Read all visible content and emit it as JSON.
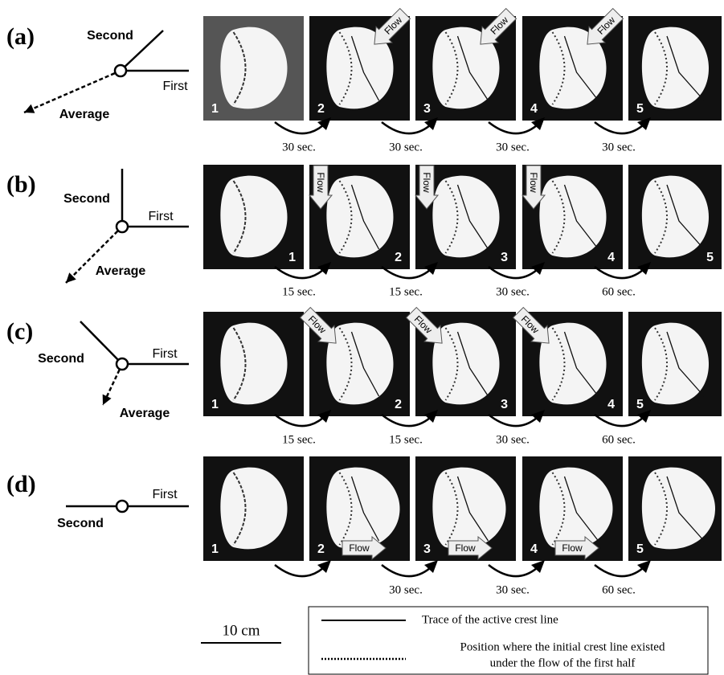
{
  "rows": [
    {
      "label": "(a)",
      "diagram": {
        "second": "Second",
        "first": "First",
        "average": "Average"
      },
      "panels": [
        "1",
        "2",
        "3",
        "4",
        "5"
      ],
      "flow": [
        "Flow",
        "Flow",
        "Flow"
      ],
      "intervals": [
        "30 sec.",
        "30 sec.",
        "30 sec.",
        "30 sec."
      ]
    },
    {
      "label": "(b)",
      "diagram": {
        "second": "Second",
        "first": "First",
        "average": "Average"
      },
      "panels": [
        "1",
        "2",
        "3",
        "4",
        "5"
      ],
      "flow": [
        "Flow",
        "Flow",
        "Flow"
      ],
      "intervals": [
        "15 sec.",
        "15 sec.",
        "30 sec.",
        "60 sec."
      ]
    },
    {
      "label": "(c)",
      "diagram": {
        "second": "Second",
        "first": "First",
        "average": "Average"
      },
      "panels": [
        "1",
        "2",
        "3",
        "4",
        "5"
      ],
      "flow": [
        "Flow",
        "Flow",
        "Flow"
      ],
      "intervals": [
        "15 sec.",
        "15 sec.",
        "30 sec.",
        "60 sec."
      ]
    },
    {
      "label": "(d)",
      "diagram": {
        "second": "Second",
        "first": "First"
      },
      "panels": [
        "1",
        "2",
        "3",
        "4",
        "5"
      ],
      "flow": [
        "Flow",
        "Flow",
        "Flow"
      ],
      "intervals": [
        "30 sec.",
        "30 sec.",
        "60 sec."
      ]
    }
  ],
  "scale_bar": "10 cm",
  "legend": [
    {
      "label": "Trace  of the active crest line"
    },
    {
      "lines": [
        "Position where the initial crest line existed",
        "under the flow of the first half"
      ]
    }
  ]
}
